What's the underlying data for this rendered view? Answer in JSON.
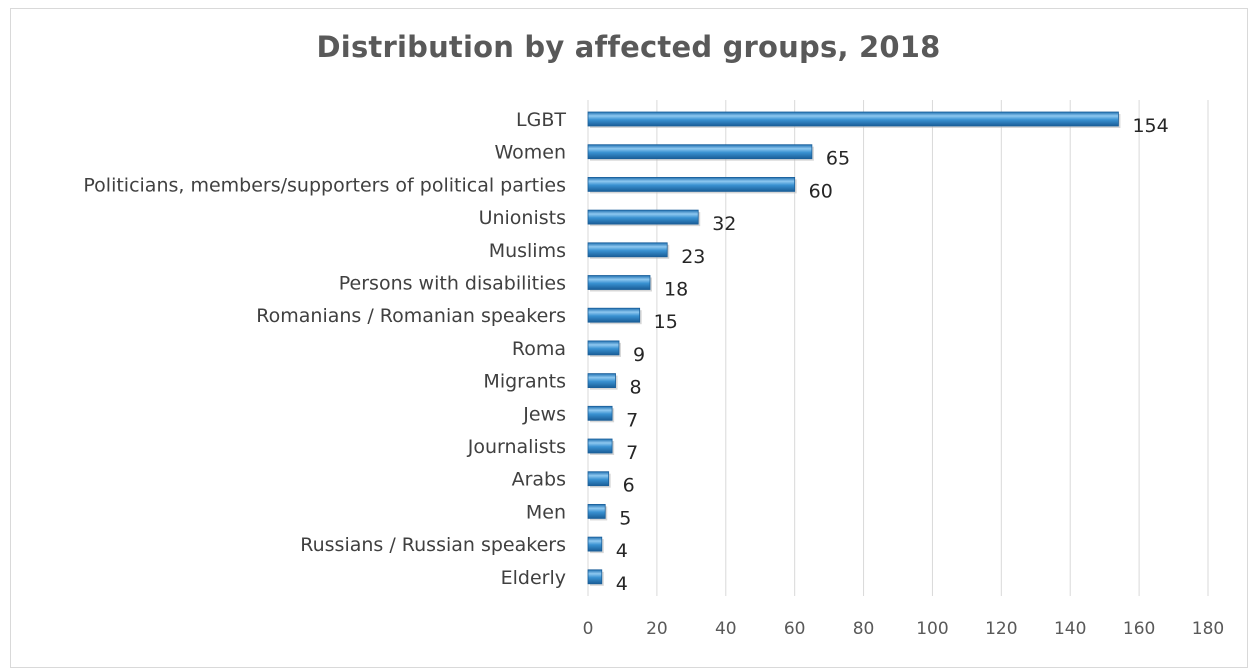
{
  "chart_data": {
    "type": "bar",
    "orientation": "horizontal",
    "title": "Distribution by affected groups, 2018",
    "xlabel": "",
    "ylabel": "",
    "categories": [
      "LGBT",
      "Women",
      "Politicians, members/supporters of political parties",
      "Unionists",
      "Muslims",
      "Persons with disabilities",
      "Romanians / Romanian speakers",
      "Roma",
      "Migrants",
      "Jews",
      "Journalists",
      "Arabs",
      "Men",
      "Russians / Russian speakers",
      "Elderly"
    ],
    "values": [
      154,
      65,
      60,
      32,
      23,
      18,
      15,
      9,
      8,
      7,
      7,
      6,
      5,
      4,
      4
    ],
    "xlim": [
      0,
      180
    ],
    "x_ticks": [
      "0",
      "20",
      "40",
      "60",
      "80",
      "100",
      "120",
      "140",
      "160",
      "180"
    ],
    "grid": "vertical",
    "legend": "none",
    "data_labels": true,
    "colors": {
      "bar_fill": "#2e86c9",
      "bar_light": "#9fd0f2",
      "bar_dark": "#1b5f99",
      "gridline": "#d9d9d9",
      "title": "#595959"
    }
  }
}
